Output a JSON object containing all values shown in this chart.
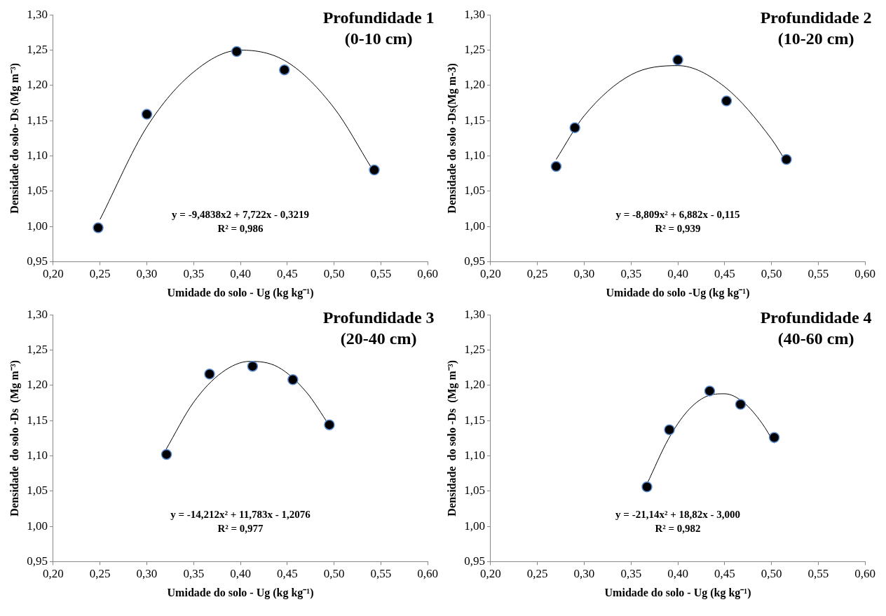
{
  "chart_data": [
    {
      "type": "scatter",
      "title": "Profundidade 1",
      "subtitle": "(0-10 cm)",
      "xlabel": "Umidade do solo - Ug (kg kg⁻¹)",
      "ylabel": "Densidade do solo- Ds (Mg m⁻³)",
      "annotations": [
        "y = -9,4838x2 + 7,722x - 0,3219",
        "R² = 0,986"
      ],
      "grid": false,
      "legend": false,
      "xlim": [
        0.2,
        0.6
      ],
      "xticks": [
        {
          "value": 0.2,
          "label": "0,20"
        },
        {
          "value": 0.25,
          "label": "0,25"
        },
        {
          "value": 0.3,
          "label": "0,30"
        },
        {
          "value": 0.35,
          "label": "0,35"
        },
        {
          "value": 0.4,
          "label": "0,40"
        },
        {
          "value": 0.45,
          "label": "0,45"
        },
        {
          "value": 0.5,
          "label": "0,50"
        },
        {
          "value": 0.55,
          "label": "0,55"
        },
        {
          "value": 0.6,
          "label": "0,60"
        }
      ],
      "ylim": [
        0.95,
        1.3
      ],
      "yticks": [
        {
          "value": 0.95,
          "label": "0,95"
        },
        {
          "value": 1,
          "label": "1,00"
        },
        {
          "value": 1.05,
          "label": "1,05"
        },
        {
          "value": 1.1,
          "label": "1,10"
        },
        {
          "value": 1.15,
          "label": "1,15"
        },
        {
          "value": 1.2,
          "label": "1,20"
        },
        {
          "value": 1.25,
          "label": "1,25"
        },
        {
          "value": 1.3,
          "label": "1,30"
        }
      ],
      "series": [
        {
          "type": "line",
          "color": "#000000",
          "marker": "none",
          "line_style": "solid",
          "x": [
            0.25,
            0.3,
            0.35,
            0.4,
            0.45,
            0.5,
            0.54
          ],
          "values": [
            1.01,
            1.141,
            1.219,
            1.25,
            1.233,
            1.168,
            1.083
          ]
        },
        {
          "color": "#000000",
          "marker": "circle",
          "x": [
            0.248,
            0.3,
            0.396,
            0.447,
            0.543
          ],
          "values": [
            0.998,
            1.159,
            1.248,
            1.222,
            1.08
          ]
        }
      ]
    },
    {
      "type": "scatter",
      "title": "Profundidade 2",
      "subtitle": "(10-20 cm)",
      "xlabel": "Umidade do solo -Ug (kg kg⁻¹)",
      "ylabel": "Densidade do solo -Ds(Mg m-3)",
      "annotations": [
        "y = -8,809x² + 6,882x - 0,115",
        "R² = 0,939"
      ],
      "grid": false,
      "legend": false,
      "xlim": [
        0.2,
        0.6
      ],
      "xticks": [
        {
          "value": 0.2,
          "label": "0,20"
        },
        {
          "value": 0.25,
          "label": "0,25"
        },
        {
          "value": 0.3,
          "label": "0,30"
        },
        {
          "value": 0.35,
          "label": "0,35"
        },
        {
          "value": 0.4,
          "label": "0,40"
        },
        {
          "value": 0.45,
          "label": "0,45"
        },
        {
          "value": 0.5,
          "label": "0,50"
        },
        {
          "value": 0.55,
          "label": "0,55"
        },
        {
          "value": 0.6,
          "label": "0,60"
        }
      ],
      "ylim": [
        0.95,
        1.3
      ],
      "yticks": [
        {
          "value": 0.95,
          "label": "0,95"
        },
        {
          "value": 1,
          "label": "1,00"
        },
        {
          "value": 1.05,
          "label": "1,05"
        },
        {
          "value": 1.1,
          "label": "1,10"
        },
        {
          "value": 1.15,
          "label": "1,15"
        },
        {
          "value": 1.2,
          "label": "1,20"
        },
        {
          "value": 1.25,
          "label": "1,25"
        },
        {
          "value": 1.3,
          "label": "1,30"
        }
      ],
      "series": [
        {
          "type": "line",
          "color": "#000000",
          "marker": "none",
          "line_style": "solid",
          "x": [
            0.27,
            0.3,
            0.35,
            0.4,
            0.45,
            0.5,
            0.516
          ],
          "values": [
            1.095,
            1.157,
            1.215,
            1.228,
            1.198,
            1.124,
            1.091
          ]
        },
        {
          "color": "#000000",
          "marker": "circle",
          "x": [
            0.27,
            0.29,
            0.4,
            0.452,
            0.516
          ],
          "values": [
            1.085,
            1.14,
            1.236,
            1.178,
            1.095
          ]
        }
      ]
    },
    {
      "type": "scatter",
      "title": "Profundidade 3",
      "subtitle": "(20-40 cm)",
      "xlabel": "Umidade do solo - Ug (kg kg⁻¹)",
      "ylabel": "Densidade  do solo -Ds  (Mg m⁻³)",
      "annotations": [
        "y = -14,212x² + 11,783x - 1,2076",
        "R² = 0,977"
      ],
      "grid": false,
      "legend": false,
      "xlim": [
        0.2,
        0.6
      ],
      "xticks": [
        {
          "value": 0.2,
          "label": "0,20"
        },
        {
          "value": 0.25,
          "label": "0,25"
        },
        {
          "value": 0.3,
          "label": "0,30"
        },
        {
          "value": 0.35,
          "label": "0,35"
        },
        {
          "value": 0.4,
          "label": "0,40"
        },
        {
          "value": 0.45,
          "label": "0,45"
        },
        {
          "value": 0.5,
          "label": "0,50"
        },
        {
          "value": 0.55,
          "label": "0,55"
        },
        {
          "value": 0.6,
          "label": "0,60"
        }
      ],
      "ylim": [
        0.95,
        1.3
      ],
      "yticks": [
        {
          "value": 0.95,
          "label": "0,95"
        },
        {
          "value": 1,
          "label": "1,00"
        },
        {
          "value": 1.05,
          "label": "1,05"
        },
        {
          "value": 1.1,
          "label": "1,10"
        },
        {
          "value": 1.15,
          "label": "1,15"
        },
        {
          "value": 1.2,
          "label": "1,20"
        },
        {
          "value": 1.25,
          "label": "1,25"
        },
        {
          "value": 1.3,
          "label": "1,30"
        }
      ],
      "series": [
        {
          "type": "line",
          "color": "#000000",
          "marker": "none",
          "line_style": "solid",
          "x": [
            0.32,
            0.35,
            0.38,
            0.41,
            0.44,
            0.47,
            0.495
          ],
          "values": [
            1.108,
            1.176,
            1.218,
            1.234,
            1.226,
            1.191,
            1.143
          ]
        },
        {
          "color": "#000000",
          "marker": "circle",
          "x": [
            0.321,
            0.367,
            0.413,
            0.456,
            0.495
          ],
          "values": [
            1.102,
            1.216,
            1.227,
            1.208,
            1.144
          ]
        }
      ]
    },
    {
      "type": "scatter",
      "title": "Profundidade 4",
      "subtitle": "(40-60 cm)",
      "xlabel": "Umidade do solo - Ug (kg kg⁻¹)",
      "ylabel": "Densidade  do solo -Ds  (Mg m⁻³)",
      "annotations": [
        "y = -21,14x² + 18,82x - 3,000",
        "R² = 0,982"
      ],
      "grid": false,
      "legend": false,
      "xlim": [
        0.2,
        0.6
      ],
      "xticks": [
        {
          "value": 0.2,
          "label": "0,20"
        },
        {
          "value": 0.25,
          "label": "0,25"
        },
        {
          "value": 0.3,
          "label": "0,30"
        },
        {
          "value": 0.35,
          "label": "0,35"
        },
        {
          "value": 0.4,
          "label": "0,40"
        },
        {
          "value": 0.45,
          "label": "0,45"
        },
        {
          "value": 0.5,
          "label": "0,50"
        },
        {
          "value": 0.55,
          "label": "0,55"
        },
        {
          "value": 0.6,
          "label": "0,60"
        }
      ],
      "ylim": [
        0.95,
        1.3
      ],
      "yticks": [
        {
          "value": 0.95,
          "label": "0,95"
        },
        {
          "value": 1,
          "label": "1,00"
        },
        {
          "value": 1.05,
          "label": "1,05"
        },
        {
          "value": 1.1,
          "label": "1,10"
        },
        {
          "value": 1.15,
          "label": "1,15"
        },
        {
          "value": 1.2,
          "label": "1,20"
        },
        {
          "value": 1.25,
          "label": "1,25"
        },
        {
          "value": 1.3,
          "label": "1,30"
        }
      ],
      "series": [
        {
          "type": "line",
          "color": "#000000",
          "marker": "none",
          "line_style": "solid",
          "x": [
            0.367,
            0.39,
            0.41,
            0.43,
            0.45,
            0.47,
            0.49,
            0.503
          ],
          "values": [
            1.06,
            1.124,
            1.163,
            1.184,
            1.188,
            1.176,
            1.146,
            1.118
          ]
        },
        {
          "color": "#000000",
          "marker": "circle",
          "x": [
            0.367,
            0.391,
            0.434,
            0.467,
            0.503
          ],
          "values": [
            1.056,
            1.137,
            1.192,
            1.173,
            1.126
          ]
        }
      ]
    }
  ]
}
